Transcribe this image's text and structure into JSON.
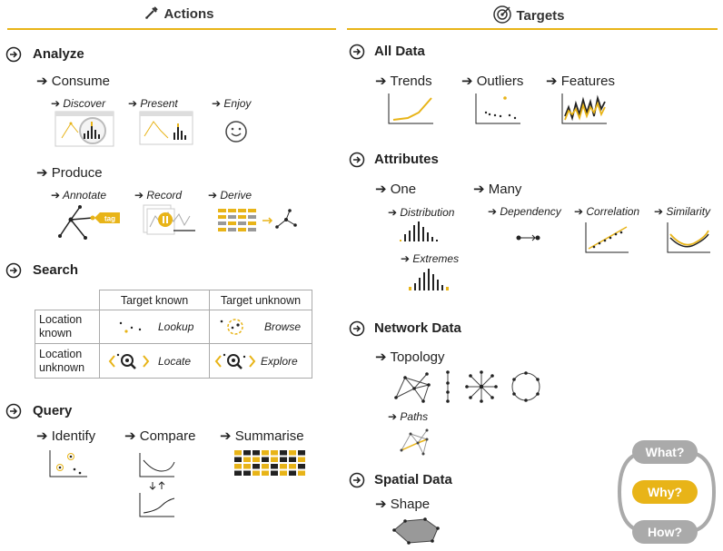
{
  "headers": {
    "actions": "Actions",
    "targets": "Targets"
  },
  "analyze": {
    "title": "Analyze",
    "consume": {
      "label": "Consume",
      "items": [
        "Discover",
        "Present",
        "Enjoy"
      ]
    },
    "produce": {
      "label": "Produce",
      "items": [
        "Annotate",
        "Record",
        "Derive"
      ],
      "tag": "tag"
    }
  },
  "search": {
    "title": "Search",
    "col_known": "Target known",
    "col_unknown": "Target unknown",
    "row1": [
      "Location",
      "known"
    ],
    "row2": [
      "Location",
      "unknown"
    ],
    "lookup": "Lookup",
    "browse": "Browse",
    "locate": "Locate",
    "explore": "Explore"
  },
  "query": {
    "title": "Query",
    "items": [
      "Identify",
      "Compare",
      "Summarise"
    ]
  },
  "targets": {
    "all_data": {
      "title": "All Data",
      "items": [
        "Trends",
        "Outliers",
        "Features"
      ]
    },
    "attributes": {
      "title": "Attributes",
      "one": "One",
      "many": "Many",
      "one_items": [
        "Distribution",
        "Extremes"
      ],
      "many_items": [
        "Dependency",
        "Correlation",
        "Similarity"
      ]
    },
    "network": {
      "title": "Network Data",
      "topology": "Topology",
      "paths": "Paths"
    },
    "spatial": {
      "title": "Spatial Data",
      "shape": "Shape"
    }
  },
  "nav": {
    "what": "What?",
    "why": "Why?",
    "how": "How?"
  },
  "colors": {
    "accent": "#e8b418",
    "gray": "#999999",
    "dark": "#222222"
  }
}
